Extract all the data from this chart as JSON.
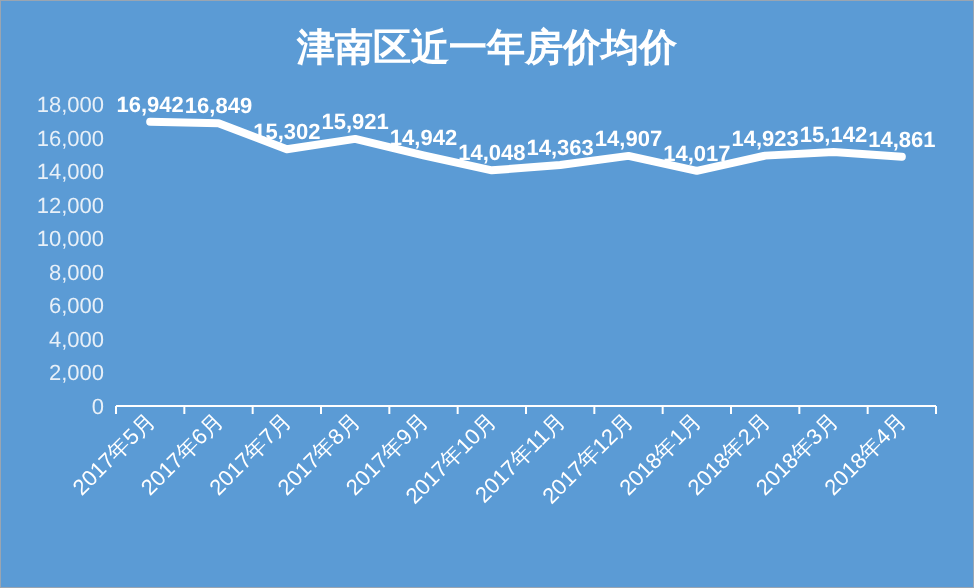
{
  "chart_data": {
    "type": "line",
    "title": "津南区近一年房价均价",
    "categories": [
      "2017年5月",
      "2017年6月",
      "2017年7月",
      "2017年8月",
      "2017年9月",
      "2017年10月",
      "2017年11月",
      "2017年12月",
      "2018年1月",
      "2018年2月",
      "2018年3月",
      "2018年4月"
    ],
    "series": [
      {
        "color": "#ffffff",
        "values": [
          16942,
          16849,
          15302,
          15921,
          14942,
          14048,
          14363,
          14907,
          14017,
          14923,
          15142,
          14861
        ],
        "value_labels": [
          "16,942",
          "16,849",
          "15,302",
          "15,921",
          "14,942",
          "14,048",
          "14,363",
          "14,907",
          "14,017",
          "14,923",
          "15,142",
          "14,861"
        ]
      }
    ],
    "ylim": [
      0,
      18000
    ],
    "yticks": [
      {
        "value": 0,
        "label": "0"
      },
      {
        "value": 2000,
        "label": "2,000"
      },
      {
        "value": 4000,
        "label": "4,000"
      },
      {
        "value": 6000,
        "label": "6,000"
      },
      {
        "value": 8000,
        "label": "8,000"
      },
      {
        "value": 10000,
        "label": "10,000"
      },
      {
        "value": 12000,
        "label": "12,000"
      },
      {
        "value": 14000,
        "label": "14,000"
      },
      {
        "value": 16000,
        "label": "16,000"
      },
      {
        "value": 18000,
        "label": "18,000"
      }
    ],
    "marker": "none",
    "line_style": "solid",
    "grid": false
  }
}
